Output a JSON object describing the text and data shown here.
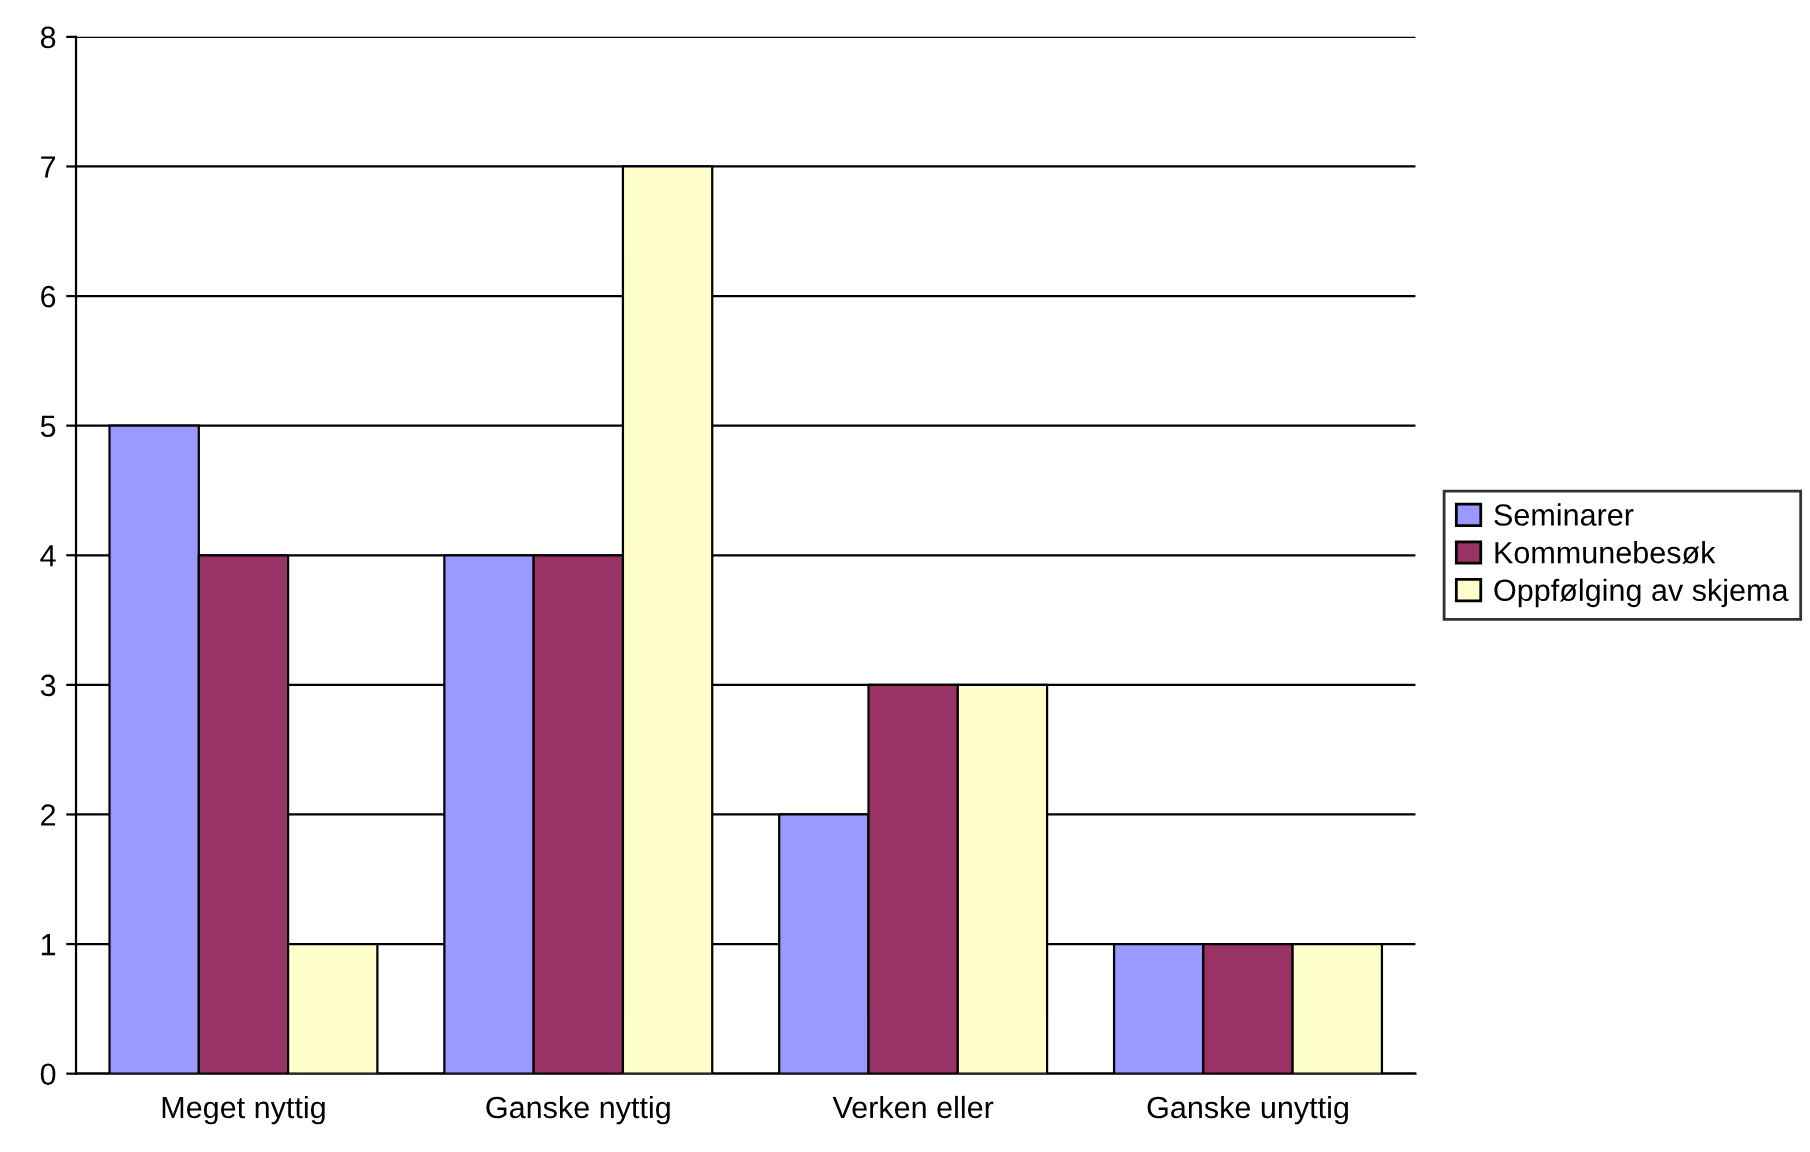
{
  "chart_data": {
    "type": "bar",
    "categories": [
      "Meget nyttig",
      "Ganske nyttig",
      "Verken eller",
      "Ganske unyttig"
    ],
    "series": [
      {
        "name": "Seminarer",
        "color": "#9999ff",
        "values": [
          5,
          4,
          2,
          1
        ]
      },
      {
        "name": "Kommunebesøk",
        "color": "#993366",
        "values": [
          4,
          4,
          3,
          1
        ]
      },
      {
        "name": "Oppfølging av skjema",
        "color": "#ffffcc",
        "values": [
          1,
          7,
          3,
          1
        ]
      }
    ],
    "ylim": [
      0,
      8
    ],
    "yticks": [
      0,
      1,
      2,
      3,
      4,
      5,
      6,
      7,
      8
    ],
    "grid": "y",
    "legend": "right"
  }
}
